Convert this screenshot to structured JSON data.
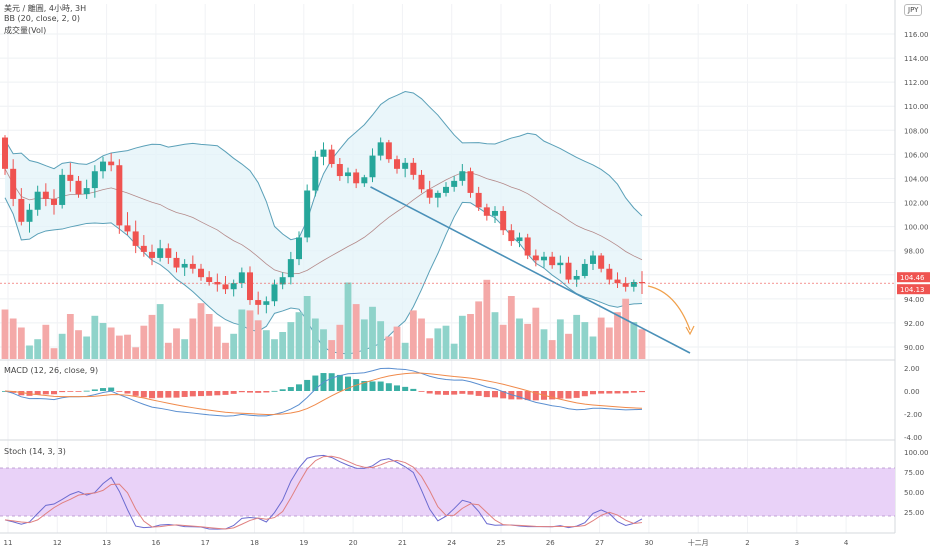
{
  "header": {
    "symbol_line": "美元 / 離圓, 4小時, 3H",
    "bb_line": "BB (20, close, 2, 0)",
    "volume_line": "成交量(Vol)",
    "macd_line": "MACD (12, 26, close, 9)",
    "stoch_line": "Stoch (14, 3, 3)",
    "currency_badge": "JPY"
  },
  "colors": {
    "up": "#26a69a",
    "down": "#ef5350",
    "vol_up": "#8fd3ca",
    "vol_down": "#f4a9a8",
    "bb_band": "#5aa0b8",
    "bb_fill": "#e3f3f8",
    "trendline": "#4a90b8",
    "forecast_arrow": "#f0a04b",
    "stoch_fill": "#e9d2f8",
    "price_tag": "#ef5350"
  },
  "chart_data": [
    {
      "type": "candlestick",
      "title": "",
      "price_axis": [
        "116.00",
        "114.00",
        "112.00",
        "110.00",
        "108.00",
        "106.00",
        "104.00",
        "102.00",
        "100.00",
        "98.00",
        "96.00",
        "94.00",
        "92.00",
        "90.00"
      ],
      "price_tags": [
        "104.46",
        "104.13"
      ],
      "x_ticks": [
        "11",
        "12",
        "13",
        "16",
        "17",
        "18",
        "19",
        "20",
        "21",
        "24",
        "25",
        "26",
        "27",
        "30",
        "十二月",
        "2",
        "3",
        "4"
      ],
      "ohlc": [
        [
          107.4,
          107.6,
          104.3,
          104.8
        ],
        [
          104.8,
          105.6,
          101.7,
          102.3
        ],
        [
          102.3,
          103.2,
          100.1,
          100.4
        ],
        [
          100.4,
          101.9,
          99.5,
          101.4
        ],
        [
          101.4,
          103.4,
          100.9,
          102.9
        ],
        [
          102.9,
          103.6,
          101.7,
          102.3
        ],
        [
          102.3,
          103.1,
          101.0,
          101.8
        ],
        [
          101.8,
          104.8,
          101.5,
          104.3
        ],
        [
          104.3,
          105.3,
          102.9,
          103.8
        ],
        [
          103.8,
          104.2,
          102.4,
          102.7
        ],
        [
          102.7,
          103.9,
          102.3,
          103.2
        ],
        [
          103.2,
          105.1,
          102.4,
          104.6
        ],
        [
          104.6,
          105.8,
          104.0,
          105.4
        ],
        [
          105.4,
          106.1,
          104.6,
          105.1
        ],
        [
          105.1,
          105.6,
          99.4,
          100.1
        ],
        [
          100.1,
          101.2,
          99.3,
          99.6
        ],
        [
          99.6,
          100.5,
          97.8,
          98.4
        ],
        [
          98.4,
          99.3,
          97.5,
          97.9
        ],
        [
          97.9,
          98.5,
          96.8,
          97.4
        ],
        [
          97.4,
          98.9,
          97.1,
          98.2
        ],
        [
          98.2,
          98.6,
          96.9,
          97.4
        ],
        [
          97.4,
          97.9,
          96.2,
          96.6
        ],
        [
          96.6,
          97.3,
          95.9,
          96.9
        ],
        [
          96.9,
          97.6,
          96.1,
          96.5
        ],
        [
          96.5,
          96.9,
          95.5,
          95.8
        ],
        [
          95.8,
          96.3,
          95.1,
          95.4
        ],
        [
          95.4,
          96.1,
          94.6,
          95.2
        ],
        [
          95.2,
          95.9,
          94.4,
          94.8
        ],
        [
          94.8,
          95.6,
          94.2,
          95.3
        ],
        [
          95.3,
          96.6,
          94.9,
          96.2
        ],
        [
          96.2,
          96.7,
          93.5,
          93.9
        ],
        [
          93.9,
          94.6,
          92.7,
          93.5
        ],
        [
          93.5,
          94.2,
          92.8,
          93.8
        ],
        [
          93.8,
          95.6,
          93.4,
          95.2
        ],
        [
          95.2,
          96.2,
          94.8,
          95.8
        ],
        [
          95.8,
          97.9,
          95.2,
          97.3
        ],
        [
          97.3,
          99.6,
          96.8,
          99.1
        ],
        [
          99.1,
          103.5,
          98.7,
          103.0
        ],
        [
          103.0,
          106.3,
          102.5,
          105.8
        ],
        [
          105.8,
          107.0,
          105.1,
          106.4
        ],
        [
          106.4,
          106.8,
          104.9,
          105.2
        ],
        [
          105.2,
          105.7,
          103.8,
          104.2
        ],
        [
          104.2,
          104.9,
          103.6,
          104.5
        ],
        [
          104.5,
          104.8,
          103.2,
          103.6
        ],
        [
          103.6,
          104.3,
          103.3,
          104.1
        ],
        [
          104.1,
          106.5,
          103.7,
          105.9
        ],
        [
          105.9,
          107.4,
          105.5,
          107.0
        ],
        [
          107.0,
          107.2,
          105.3,
          105.6
        ],
        [
          105.6,
          105.9,
          104.4,
          104.8
        ],
        [
          104.8,
          105.7,
          104.1,
          105.3
        ],
        [
          105.3,
          105.7,
          103.9,
          104.3
        ],
        [
          104.3,
          104.7,
          102.8,
          103.1
        ],
        [
          103.1,
          103.8,
          101.9,
          102.4
        ],
        [
          102.4,
          103.0,
          101.6,
          102.8
        ],
        [
          102.8,
          103.7,
          102.5,
          103.3
        ],
        [
          103.3,
          104.2,
          102.9,
          103.8
        ],
        [
          103.8,
          105.2,
          103.4,
          104.6
        ],
        [
          104.6,
          104.9,
          102.4,
          102.8
        ],
        [
          102.8,
          103.3,
          101.3,
          101.6
        ],
        [
          101.6,
          101.9,
          100.5,
          100.9
        ],
        [
          100.9,
          101.7,
          100.3,
          101.3
        ],
        [
          101.3,
          101.7,
          99.3,
          99.7
        ],
        [
          99.7,
          100.2,
          98.4,
          98.8
        ],
        [
          98.8,
          99.5,
          98.3,
          99.1
        ],
        [
          99.1,
          99.4,
          97.3,
          97.6
        ],
        [
          97.6,
          98.1,
          96.7,
          97.2
        ],
        [
          97.2,
          97.9,
          96.6,
          97.5
        ],
        [
          97.5,
          97.9,
          96.5,
          96.8
        ],
        [
          96.8,
          97.6,
          96.1,
          97.0
        ],
        [
          97.0,
          97.5,
          95.3,
          95.6
        ],
        [
          95.6,
          96.4,
          95.0,
          95.9
        ],
        [
          95.9,
          97.3,
          95.7,
          96.9
        ],
        [
          96.9,
          98.0,
          96.4,
          97.6
        ],
        [
          97.6,
          97.8,
          96.2,
          96.5
        ],
        [
          96.5,
          96.9,
          95.2,
          95.6
        ],
        [
          95.6,
          96.2,
          94.9,
          95.3
        ],
        [
          95.3,
          95.8,
          94.6,
          95.0
        ],
        [
          95.0,
          95.6,
          94.6,
          95.4
        ],
        [
          95.4,
          96.3,
          94.4,
          95.3
        ]
      ],
      "volume": [
        0.55,
        0.45,
        0.35,
        0.15,
        0.22,
        0.38,
        0.12,
        0.28,
        0.5,
        0.32,
        0.25,
        0.48,
        0.4,
        0.35,
        0.26,
        0.27,
        0.13,
        0.37,
        0.49,
        0.61,
        0.18,
        0.34,
        0.22,
        0.45,
        0.62,
        0.5,
        0.36,
        0.18,
        0.28,
        0.55,
        0.54,
        0.43,
        0.32,
        0.22,
        0.3,
        0.41,
        0.52,
        0.7,
        0.45,
        0.33,
        0.21,
        0.38,
        0.85,
        0.61,
        0.44,
        0.58,
        0.42,
        0.25,
        0.36,
        0.18,
        0.54,
        0.45,
        0.23,
        0.34,
        0.37,
        0.17,
        0.48,
        0.5,
        0.64,
        0.88,
        0.52,
        0.38,
        0.7,
        0.45,
        0.39,
        0.57,
        0.33,
        0.21,
        0.44,
        0.28,
        0.49,
        0.41,
        0.25,
        0.46,
        0.35,
        0.52,
        0.67,
        0.41,
        0.33
      ]
    },
    {
      "type": "line",
      "title": "",
      "panel": "MACD",
      "y_axis": [
        "2.00",
        "0.00",
        "-2.00",
        "-4.00"
      ]
    },
    {
      "type": "line",
      "title": "",
      "panel": "Stoch",
      "y_axis": [
        "100.00",
        "75.00",
        "50.00",
        "25.00"
      ],
      "band": [
        20,
        80
      ]
    }
  ]
}
